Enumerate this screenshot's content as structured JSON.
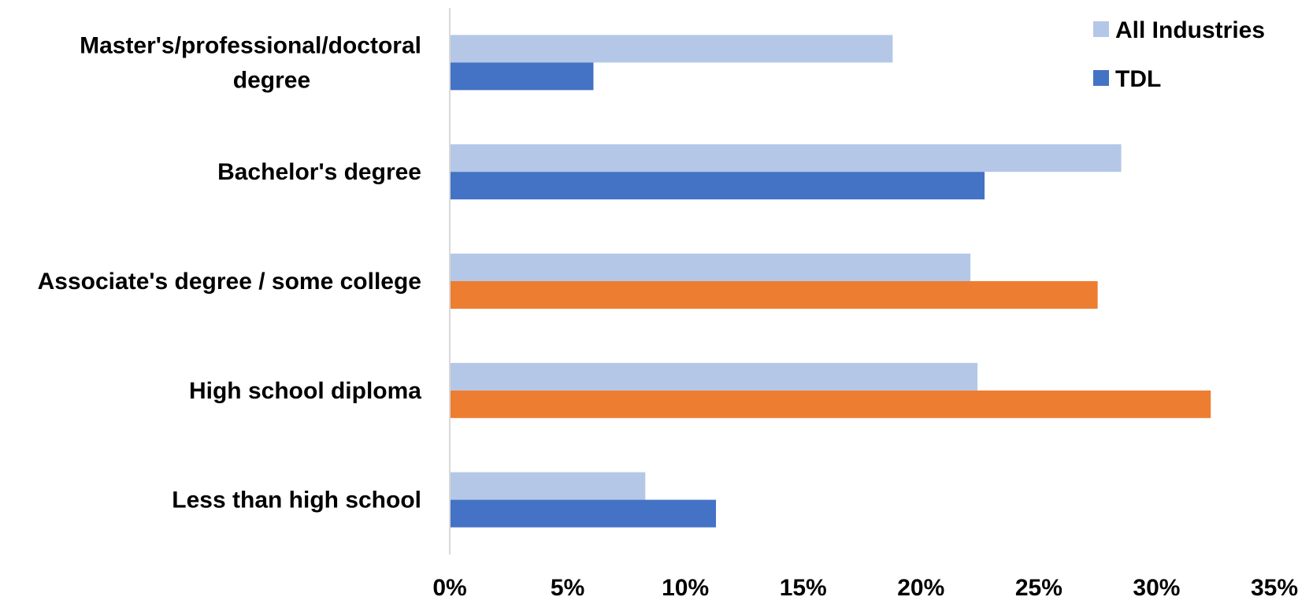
{
  "chart_data": {
    "type": "bar",
    "orientation": "horizontal",
    "categories": [
      [
        "Master's/professional/doctoral",
        "degree"
      ],
      [
        "Bachelor's degree"
      ],
      [
        "Associate's degree / some college"
      ],
      [
        "High school diploma"
      ],
      [
        "Less than high school"
      ]
    ],
    "series": [
      {
        "name": "All Industries",
        "color": "#B4C7E7",
        "values": [
          18.8,
          28.5,
          22.1,
          22.4,
          8.3
        ]
      },
      {
        "name": "TDL",
        "color": "#4472C4",
        "values": [
          6.1,
          22.7,
          27.5,
          32.3,
          11.3
        ]
      }
    ],
    "highlight_color": "#ED7D31",
    "highlighted": [
      {
        "series": 1,
        "category": 2
      },
      {
        "series": 1,
        "category": 3
      }
    ],
    "xlim": [
      0,
      35
    ],
    "x_ticks": [
      0,
      5,
      10,
      15,
      20,
      25,
      30,
      35
    ],
    "x_tick_labels": [
      "0%",
      "5%",
      "10%",
      "15%",
      "20%",
      "25%",
      "30%",
      "35%"
    ],
    "title": "",
    "xlabel": "",
    "ylabel": "",
    "grid": false,
    "legend_position": "top-right",
    "legend": [
      "All Industries",
      "TDL"
    ]
  }
}
